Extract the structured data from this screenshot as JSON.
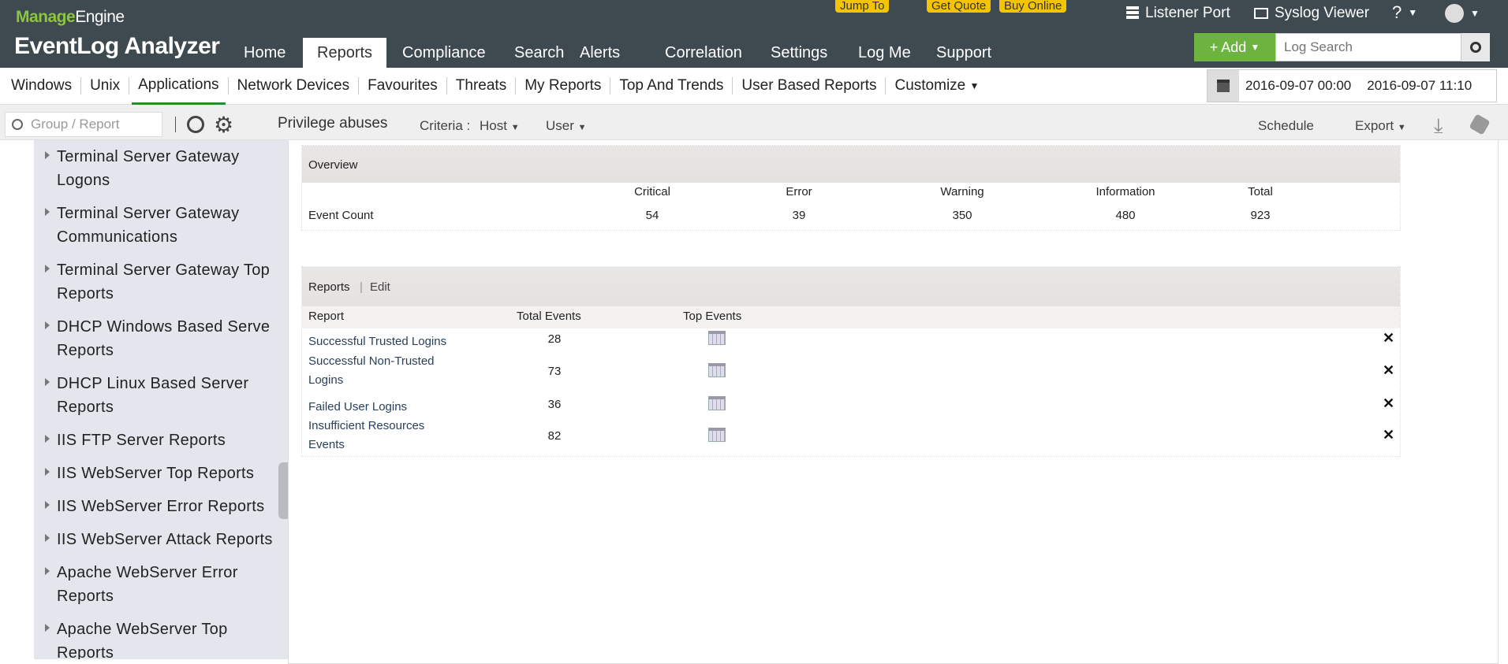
{
  "brand": {
    "vendor_a": "Manage",
    "vendor_b": "Engine",
    "product": "EventLog Analyzer"
  },
  "header": {
    "nav": [
      "Home",
      "Reports",
      "Compliance",
      "Search",
      "Alerts",
      "Correlation",
      "Settings",
      "Log Me",
      "Support"
    ],
    "active": "Reports",
    "promos": [
      "Jump To",
      "Get Quote",
      "Buy Online"
    ],
    "listener_port": "Listener Port",
    "syslog_viewer": "Syslog Viewer",
    "help": "?",
    "add_label": "+ Add",
    "log_search_placeholder": "Log Search"
  },
  "subnav": {
    "tabs": [
      "Windows",
      "Unix",
      "Applications",
      "Network Devices",
      "Favourites",
      "Threats",
      "My Reports",
      "Top And Trends",
      "User Based Reports",
      "Customize"
    ],
    "active": "Applications",
    "date_from": "2016-09-07 00:00",
    "date_to": "2016-09-07 11:10"
  },
  "toolbar": {
    "group_search_placeholder": "Group / Report",
    "report_title": "Privilege abuses",
    "criteria_label": "Criteria :",
    "host": "Host",
    "user": "User",
    "schedule": "Schedule",
    "export": "Export"
  },
  "sidebar": {
    "items": [
      "Terminal Server Gateway Logons",
      "Terminal Server Gateway Communications",
      "Terminal Server Gateway Top Reports",
      "DHCP Windows Based Serve Reports",
      "DHCP Linux Based Server Reports",
      "IIS FTP Server Reports",
      "IIS WebServer Top Reports",
      "IIS WebServer Error Reports",
      "IIS WebServer Attack Reports",
      "Apache WebServer Error Reports",
      "Apache WebServer Top Reports"
    ]
  },
  "overview": {
    "title": "Overview",
    "row_label": "Event Count",
    "columns": [
      "Critical",
      "Error",
      "Warning",
      "Information",
      "Total"
    ],
    "values": [
      "54",
      "39",
      "350",
      "480",
      "923"
    ]
  },
  "reports": {
    "title": "Reports",
    "edit": "Edit",
    "columns": [
      "Report",
      "Total Events",
      "Top Events"
    ],
    "rows": [
      {
        "name": "Successful Trusted Logins",
        "total": "28"
      },
      {
        "name": "Successful Non-Trusted Logins",
        "total": "73"
      },
      {
        "name": "Failed User Logins",
        "total": "36"
      },
      {
        "name": "Insufficient Resources Events",
        "total": "82"
      }
    ]
  },
  "colors": {
    "header_bg": "#3e4a4f",
    "brand_green": "#8cc63f",
    "add_green": "#6db33f",
    "promo_yellow": "#f5c400",
    "sidebar_bg": "#e3e6ec"
  }
}
